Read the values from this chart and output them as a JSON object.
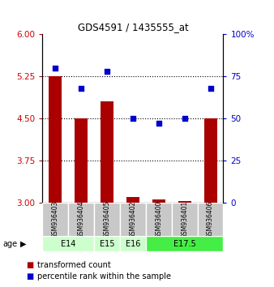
{
  "title": "GDS4591 / 1435555_at",
  "samples": [
    "GSM936403",
    "GSM936404",
    "GSM936405",
    "GSM936402",
    "GSM936400",
    "GSM936401",
    "GSM936406"
  ],
  "transformed_counts": [
    5.25,
    4.5,
    4.8,
    3.1,
    3.05,
    3.02,
    4.5
  ],
  "percentile_ranks": [
    80,
    68,
    78,
    50,
    47,
    50,
    68
  ],
  "age_group_spans": [
    {
      "label": "E14",
      "start": 0,
      "end": 2,
      "color": "#ccffcc"
    },
    {
      "label": "E15",
      "start": 2,
      "end": 3,
      "color": "#ccffcc"
    },
    {
      "label": "E16",
      "start": 3,
      "end": 4,
      "color": "#ccffcc"
    },
    {
      "label": "E17.5",
      "start": 4,
      "end": 7,
      "color": "#44ee44"
    }
  ],
  "ylim_left": [
    3.0,
    6.0
  ],
  "yticks_left": [
    3.0,
    3.75,
    4.5,
    5.25,
    6.0
  ],
  "ylim_right": [
    0,
    100
  ],
  "yticks_right": [
    0,
    25,
    50,
    75,
    100
  ],
  "bar_color": "#aa0000",
  "dot_color": "#0000cc",
  "bar_width": 0.5,
  "left_tick_color": "#cc0000",
  "right_tick_color": "#0000cc",
  "legend_labels": [
    "transformed count",
    "percentile rank within the sample"
  ],
  "age_label": "age",
  "sample_box_color": "#c8c8c8"
}
